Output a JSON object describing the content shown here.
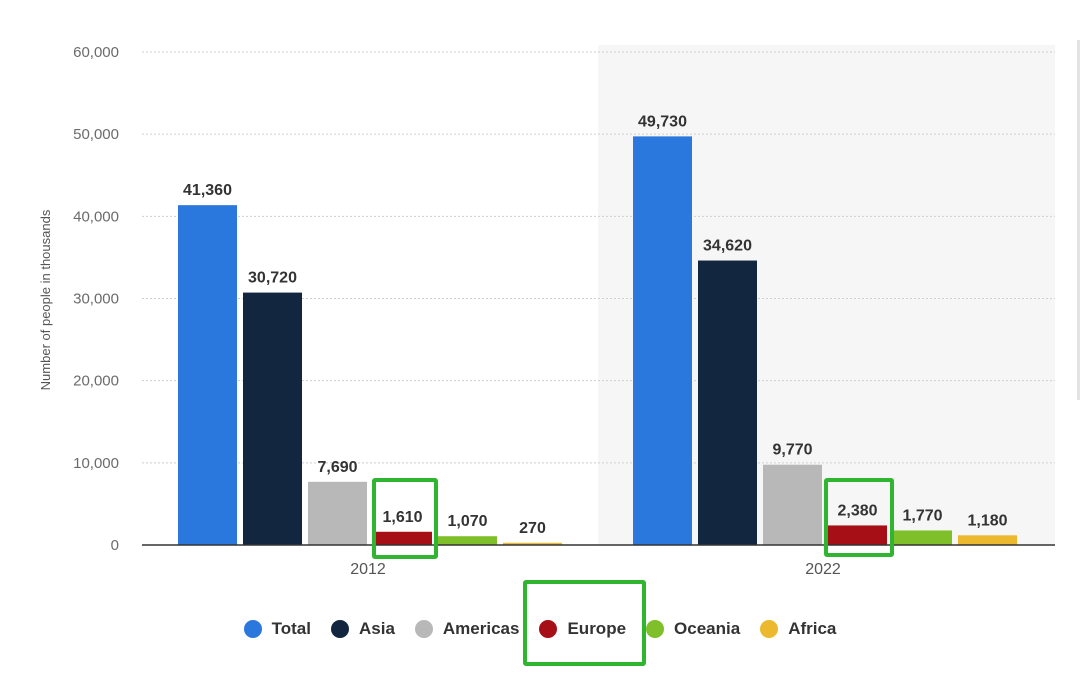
{
  "chart_data": {
    "type": "bar",
    "title": "",
    "xlabel": "",
    "ylabel": "Number of people in thousands",
    "ylim": [
      0,
      60000
    ],
    "yticks": [
      0,
      10000,
      20000,
      30000,
      40000,
      50000,
      60000
    ],
    "ytick_labels": [
      "0",
      "10,000",
      "20,000",
      "30,000",
      "40,000",
      "50,000",
      "60,000"
    ],
    "categories": [
      "2012",
      "2022"
    ],
    "series": [
      {
        "name": "Total",
        "color": "#2a78de",
        "values": [
          41360,
          49730
        ],
        "labels": [
          "41,360",
          "49,730"
        ]
      },
      {
        "name": "Asia",
        "color": "#13263f",
        "values": [
          30720,
          34620
        ],
        "labels": [
          "30,720",
          "34,620"
        ]
      },
      {
        "name": "Americas",
        "color": "#b8b8b8",
        "values": [
          7690,
          9770
        ],
        "labels": [
          "7,690",
          "9,770"
        ]
      },
      {
        "name": "Europe",
        "color": "#a50f15",
        "values": [
          1610,
          2380
        ],
        "labels": [
          "1,610",
          "2,380"
        ]
      },
      {
        "name": "Oceania",
        "color": "#7fbf2a",
        "values": [
          1070,
          1770
        ],
        "labels": [
          "1,070",
          "1,770"
        ]
      },
      {
        "name": "Africa",
        "color": "#ecb92e",
        "values": [
          270,
          1180
        ],
        "labels": [
          "270",
          "1,180"
        ]
      }
    ],
    "grid": true,
    "legend": "bottom",
    "highlighted_series": "Europe"
  }
}
